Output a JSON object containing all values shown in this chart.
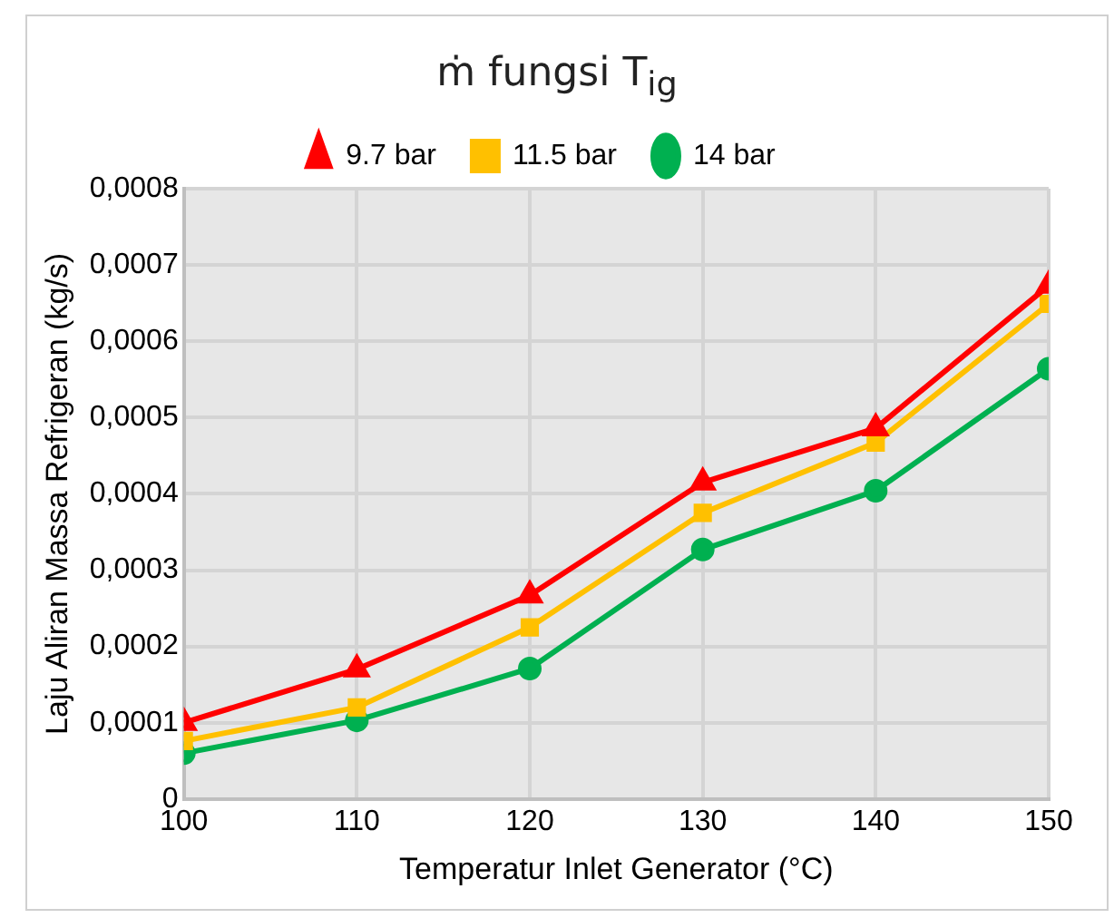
{
  "chart_data": {
    "type": "line",
    "title": "ṁ fungsi T$_{ig}$",
    "xlabel": "Temperatur Inlet Generator (°C)",
    "ylabel": "Laju Aliran Massa Refrigeran (kg/s)",
    "x": [
      100,
      110,
      120,
      130,
      140,
      150
    ],
    "series": [
      {
        "name": "9.7 bar",
        "color": "#ff0000",
        "marker": "triangle",
        "values": [
          0.0001,
          0.00017,
          0.000267,
          0.000415,
          0.000486,
          0.000673
        ]
      },
      {
        "name": "11.5 bar",
        "color": "#ffc000",
        "marker": "square",
        "values": [
          7.6e-05,
          0.00012,
          0.000225,
          0.000375,
          0.000467,
          0.000649
        ]
      },
      {
        "name": "14 bar",
        "color": "#00b050",
        "marker": "circle",
        "values": [
          6e-05,
          0.000103,
          0.000171,
          0.000327,
          0.000404,
          0.000564
        ]
      }
    ],
    "xlim": [
      100,
      150
    ],
    "xticks": [
      100,
      110,
      120,
      130,
      140,
      150
    ],
    "ylim": [
      0,
      0.0008
    ],
    "yticks": [
      {
        "value": 0,
        "label": "0"
      },
      {
        "value": 0.0001,
        "label": "0,0001"
      },
      {
        "value": 0.0002,
        "label": "0,0002"
      },
      {
        "value": 0.0003,
        "label": "0,0003"
      },
      {
        "value": 0.0004,
        "label": "0,0004"
      },
      {
        "value": 0.0005,
        "label": "0,0005"
      },
      {
        "value": 0.0006,
        "label": "0,0006"
      },
      {
        "value": 0.0007,
        "label": "0,0007"
      },
      {
        "value": 0.0008,
        "label": "0,0008"
      }
    ],
    "grid": true,
    "legend": "top",
    "line_style": "solid"
  }
}
